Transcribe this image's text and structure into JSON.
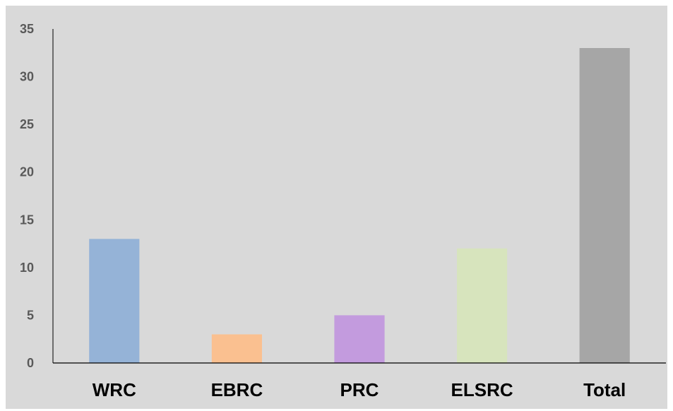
{
  "chart_data": {
    "type": "bar",
    "title": "",
    "xlabel": "",
    "ylabel": "",
    "categories": [
      "WRC",
      "EBRC",
      "PRC",
      "ELSRC",
      "Total"
    ],
    "values": [
      13,
      3,
      5,
      12,
      33
    ],
    "colors": [
      "#95b3d7",
      "#fac090",
      "#c39bde",
      "#d7e4bd",
      "#a6a6a6"
    ],
    "ylim": [
      0,
      35
    ],
    "yticks": [
      "0",
      "5",
      "10",
      "15",
      "20",
      "25",
      "30",
      "35"
    ],
    "grid": false,
    "legend": "none",
    "background": "#d9d9d9"
  }
}
